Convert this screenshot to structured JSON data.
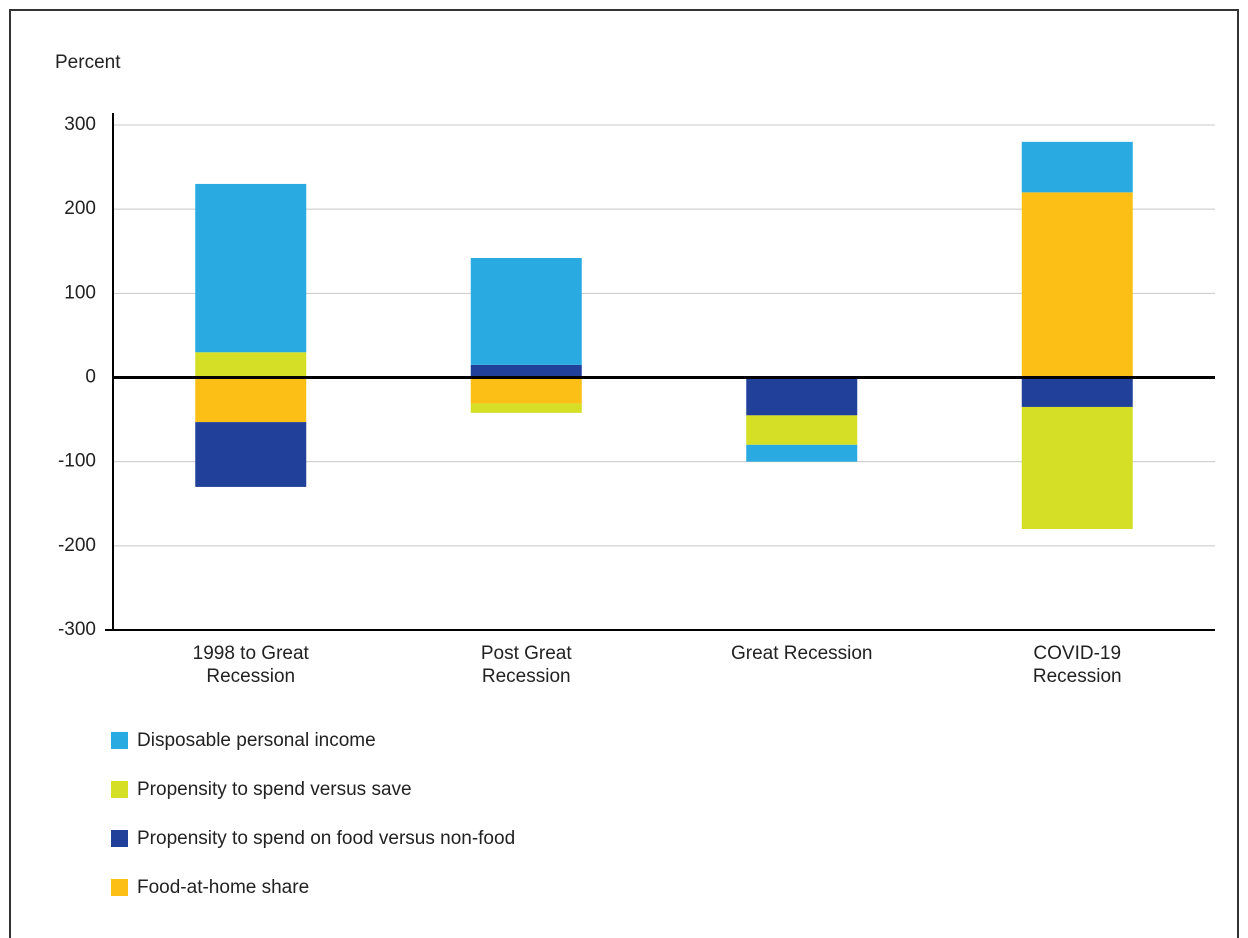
{
  "chart_data": {
    "type": "stacked_bar",
    "y_label": "Percent",
    "categories": [
      "1998 to Great Recession",
      "Post Great Recession",
      "Great Recession",
      "COVID-19 Recession"
    ],
    "series": [
      {
        "name": "Disposable personal income",
        "color": "#29abe2",
        "values": [
          200,
          127,
          -20,
          60
        ]
      },
      {
        "name": "Propensity to spend versus save",
        "color": "#d4df26",
        "values": [
          30,
          -11,
          -35,
          -145
        ]
      },
      {
        "name": "Propensity to spend on food versus non-food",
        "color": "#21409a",
        "values": [
          -77,
          15,
          -45,
          -35
        ]
      },
      {
        "name": "Food-at-home share",
        "color": "#fbbf16",
        "values": [
          -53,
          -31,
          0,
          220
        ]
      }
    ],
    "ylim": [
      -300,
      300
    ],
    "yticks": [
      -300,
      -200,
      -100,
      0,
      100,
      200,
      300
    ],
    "grid": true
  }
}
